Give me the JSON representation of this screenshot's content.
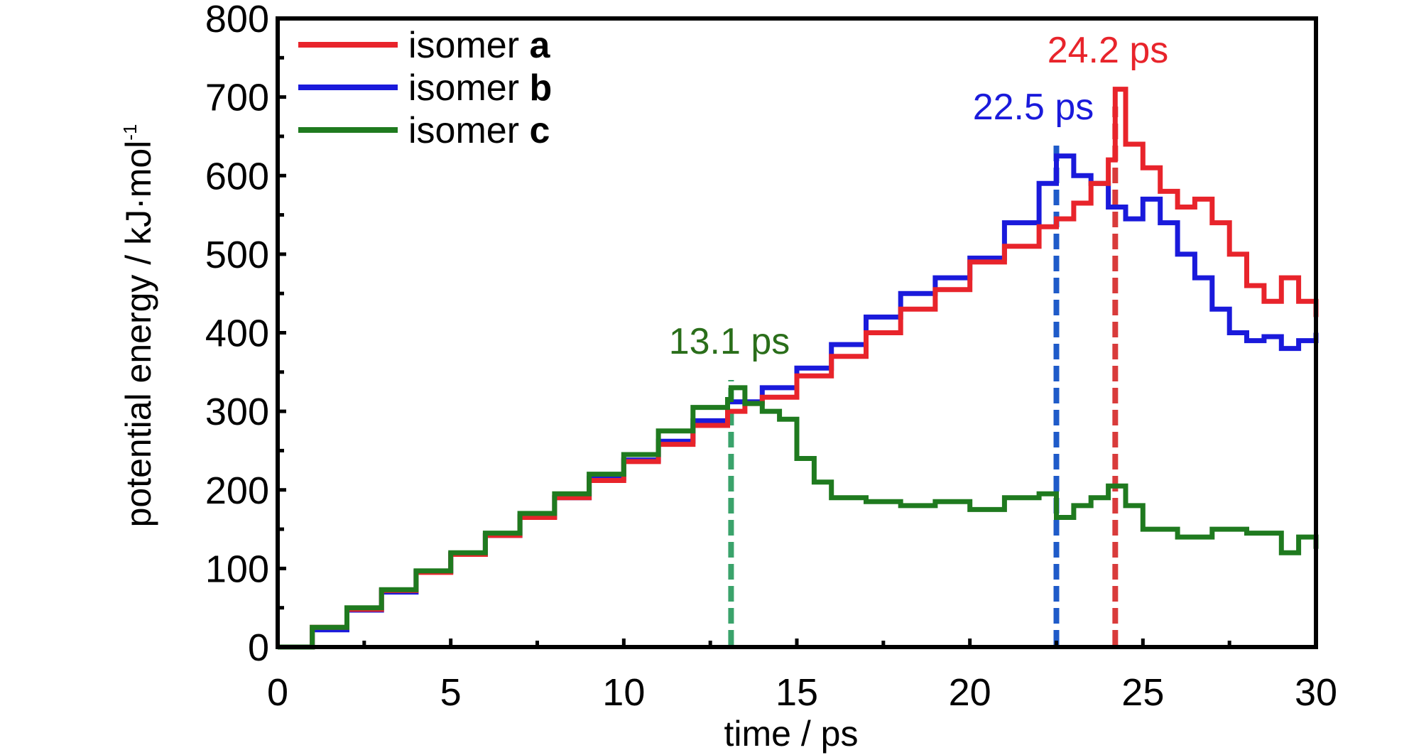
{
  "chart_data": {
    "type": "line",
    "xlabel": "time / ps",
    "ylabel_main": "potential energy / kJ·mol",
    "ylabel_sup": "-1",
    "xlim": [
      0,
      30
    ],
    "ylim": [
      0,
      800
    ],
    "xticks": [
      0,
      5,
      10,
      15,
      20,
      25,
      30
    ],
    "yticks": [
      0,
      100,
      200,
      300,
      400,
      500,
      600,
      700,
      800
    ],
    "legend_position": "top-left",
    "series": [
      {
        "name_prefix": "isomer ",
        "name_bold": "a",
        "color": "#e8242b",
        "x": [
          0,
          1,
          2,
          3,
          4,
          5,
          6,
          7,
          8,
          9,
          10,
          11,
          12,
          13,
          13.5,
          14,
          15,
          16,
          17,
          18,
          19,
          20,
          21,
          22,
          22.5,
          23,
          23.5,
          24,
          24.2,
          24.5,
          25,
          25.5,
          26,
          26.5,
          27,
          27.5,
          28,
          28.5,
          29,
          29.5,
          30
        ],
        "y": [
          0,
          25,
          48,
          72,
          95,
          118,
          142,
          165,
          190,
          212,
          236,
          258,
          282,
          300,
          310,
          318,
          345,
          370,
          400,
          430,
          455,
          490,
          510,
          535,
          545,
          565,
          590,
          620,
          710,
          640,
          610,
          580,
          560,
          570,
          540,
          500,
          460,
          440,
          470,
          440,
          420
        ]
      },
      {
        "name_prefix": "isomer ",
        "name_bold": "b",
        "color": "#1a1adb",
        "x": [
          0,
          1,
          2,
          3,
          4,
          5,
          6,
          7,
          8,
          9,
          10,
          11,
          12,
          13,
          14,
          15,
          16,
          17,
          18,
          19,
          20,
          21,
          22,
          22.5,
          23,
          23.5,
          24,
          24.5,
          25,
          25.5,
          26,
          26.5,
          27,
          27.5,
          28,
          28.5,
          29,
          29.5,
          30
        ],
        "y": [
          0,
          22,
          47,
          70,
          96,
          118,
          142,
          166,
          190,
          215,
          238,
          262,
          288,
          312,
          330,
          355,
          385,
          420,
          450,
          470,
          495,
          540,
          590,
          625,
          600,
          590,
          560,
          545,
          570,
          540,
          500,
          470,
          430,
          400,
          390,
          395,
          380,
          390,
          400
        ]
      },
      {
        "name_prefix": "isomer ",
        "name_bold": "c",
        "color": "#1f7a1f",
        "x": [
          0,
          1,
          2,
          3,
          4,
          5,
          6,
          7,
          8,
          9,
          10,
          11,
          12,
          13,
          13.1,
          13.5,
          14,
          14.5,
          15,
          15.5,
          16,
          17,
          18,
          19,
          20,
          21,
          22,
          22.5,
          23,
          23.5,
          24,
          24.5,
          25,
          26,
          27,
          28,
          29,
          29.5,
          30
        ],
        "y": [
          0,
          25,
          50,
          73,
          97,
          120,
          145,
          170,
          195,
          220,
          245,
          275,
          305,
          315,
          330,
          310,
          300,
          290,
          240,
          210,
          190,
          185,
          180,
          185,
          175,
          190,
          195,
          165,
          180,
          190,
          205,
          180,
          150,
          140,
          150,
          145,
          120,
          140,
          125
        ]
      }
    ],
    "annotations": [
      {
        "label": "13.1 ps",
        "x": 13.1,
        "color": "#2a6e1a",
        "line_color": "#3aa36b"
      },
      {
        "label": "22.5 ps",
        "x": 22.5,
        "color": "#1a1adb",
        "line_color": "#1f5bc9"
      },
      {
        "label": "24.2 ps",
        "x": 24.2,
        "color": "#e8242b",
        "line_color": "#d93b3b"
      }
    ]
  }
}
